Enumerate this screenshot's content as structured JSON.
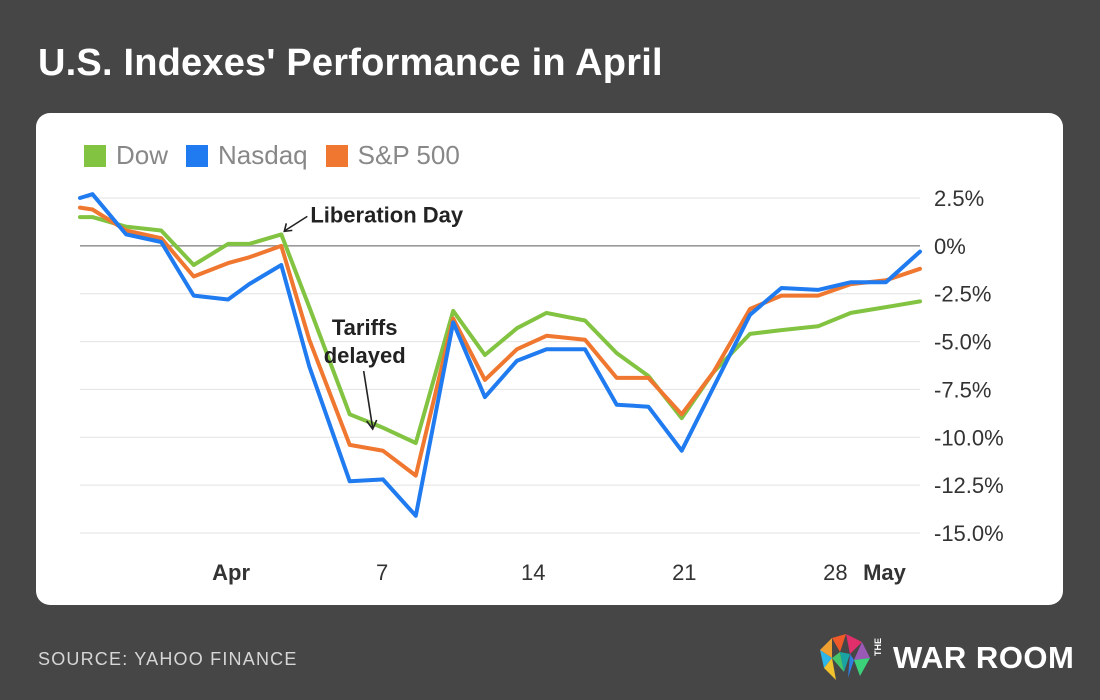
{
  "title": "U.S. Indexes' Performance in April",
  "source": "SOURCE: YAHOO FINANCE",
  "brand": {
    "the": "THE",
    "name": "WAR ROOM"
  },
  "colors": {
    "dow": "#82c341",
    "nasdaq": "#1f7bef",
    "sp500": "#f0772f",
    "background": "#464647"
  },
  "chart_data": {
    "type": "line",
    "title": "U.S. Indexes' Performance in April",
    "legend_position": "top-left",
    "grid": true,
    "y_tick_values": [
      2.5,
      0,
      -2.5,
      -5,
      -7.5,
      -10,
      -12.5,
      -15
    ],
    "y_tick_labels": [
      "2.5%",
      "0%",
      "-2.5%",
      "-5.0%",
      "-7.5%",
      "-10.0%",
      "-12.5%",
      "-15.0%"
    ],
    "ylim": [
      -15,
      2.5
    ],
    "x_ticks": [
      {
        "label": "Apr",
        "x": 4,
        "bold": true
      },
      {
        "label": "7",
        "x": 8,
        "bold": false
      },
      {
        "label": "14",
        "x": 12,
        "bold": false
      },
      {
        "label": "21",
        "x": 16,
        "bold": false
      },
      {
        "label": "28",
        "x": 20,
        "bold": false
      },
      {
        "label": "May",
        "x": 21.3,
        "bold": true
      }
    ],
    "x": [
      0,
      0.33,
      1.22,
      2.15,
      3.01,
      3.92,
      4.48,
      5.33,
      6.07,
      7.14,
      8.02,
      8.89,
      9.88,
      10.72,
      11.57,
      12.35,
      13.37,
      14.21,
      15.05,
      15.93,
      16.77,
      17.74,
      18.57,
      19.54,
      20.41,
      21.34,
      22.24
    ],
    "series": [
      {
        "name": "Dow",
        "color": "#82c341",
        "values": [
          1.5,
          1.5,
          1.0,
          0.8,
          -1.0,
          0.1,
          0.1,
          0.6,
          -3.2,
          -8.8,
          -9.5,
          -10.3,
          -3.4,
          -5.7,
          -4.3,
          -3.5,
          -3.9,
          -5.6,
          -6.8,
          -9.0,
          -6.6,
          -4.6,
          -4.4,
          -4.2,
          -3.5,
          -3.2,
          -2.9
        ]
      },
      {
        "name": "Nasdaq",
        "color": "#1f7bef",
        "values": [
          2.5,
          2.7,
          0.6,
          0.2,
          -2.6,
          -2.8,
          -2.0,
          -1.0,
          -6.3,
          -12.3,
          -12.2,
          -14.1,
          -4.0,
          -7.9,
          -6.0,
          -5.4,
          -5.4,
          -8.3,
          -8.4,
          -10.7,
          -7.4,
          -3.6,
          -2.2,
          -2.3,
          -1.9,
          -1.9,
          -0.3
        ]
      },
      {
        "name": "S&P 500",
        "color": "#f0772f",
        "values": [
          2.0,
          1.9,
          0.8,
          0.4,
          -1.6,
          -0.9,
          -0.6,
          0.0,
          -4.9,
          -10.4,
          -10.7,
          -12.0,
          -3.8,
          -7.0,
          -5.4,
          -4.7,
          -4.9,
          -6.9,
          -6.9,
          -8.8,
          -6.6,
          -3.3,
          -2.6,
          -2.6,
          -2.0,
          -1.8,
          -1.2
        ]
      }
    ],
    "annotations": [
      {
        "lines": [
          "Liberation Day"
        ],
        "x": 5.33,
        "y": 0.6
      },
      {
        "lines": [
          "Tariffs",
          "delayed"
        ],
        "x": 7.14,
        "y": -10.3
      }
    ]
  }
}
